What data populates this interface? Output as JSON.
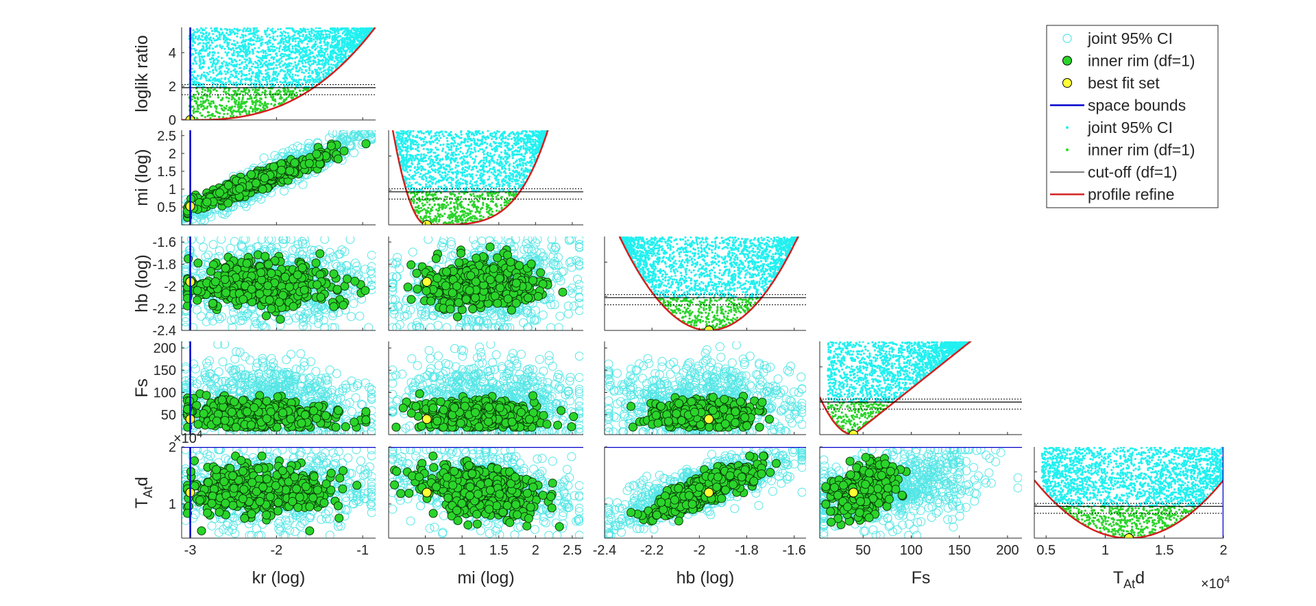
{
  "figure": {
    "legend_position": "top-right",
    "legend": [
      {
        "label": "joint 95% CI",
        "marker": "open-circle",
        "color": "#55e6e6"
      },
      {
        "label": "inner rim (df=1)",
        "marker": "filled-circle",
        "color": "#2ad42a"
      },
      {
        "label": "best fit set",
        "marker": "filled-circle",
        "color": "#ffff33"
      },
      {
        "label": "space bounds",
        "marker": "line",
        "color": "#0000cc"
      },
      {
        "label": "joint 95% CI",
        "marker": "dot",
        "color": "#22f0f0"
      },
      {
        "label": "inner rim (df=1)",
        "marker": "dot",
        "color": "#22dd22"
      },
      {
        "label": "cut-off (df=1)",
        "marker": "line",
        "color": "#000000"
      },
      {
        "label": "profile refine",
        "marker": "line",
        "color": "#d42020"
      }
    ],
    "colors": {
      "joint_ci": "#55e6e6",
      "inner_rim": "#2ad42a",
      "best_fit": "#ffff33",
      "space_bounds": "#0000cc",
      "cutoff": "#000000",
      "profile": "#d42020"
    }
  },
  "chart_data": {
    "type": "scatter",
    "grid": false,
    "layout": "lower-triangular scatter matrix with profile likelihood panels on the diagonal",
    "parameters": [
      {
        "name": "kr",
        "xlabel": "kr (log)",
        "ylabel": "",
        "range": [
          -3.1,
          -0.85
        ],
        "ticks": [
          -3,
          -2,
          -1
        ],
        "tick_labels": [
          "-3",
          "-2",
          "-1"
        ],
        "best": -3.0,
        "lower_bound": -3.0
      },
      {
        "name": "mi",
        "xlabel": "mi (log)",
        "ylabel": "mi (log)",
        "range": [
          0.0,
          2.65
        ],
        "ticks": [
          0.5,
          1,
          1.5,
          2,
          2.5
        ],
        "tick_labels": [
          "0.5",
          "1",
          "1.5",
          "2",
          "2.5"
        ],
        "best": 0.52
      },
      {
        "name": "hb",
        "xlabel": "hb (log)",
        "ylabel": "hb (log)",
        "range": [
          -2.4,
          -1.55
        ],
        "ticks": [
          -2.4,
          -2.2,
          -2,
          -1.8,
          -1.6
        ],
        "tick_labels": [
          "-2.4",
          "-2.2",
          "-2",
          "-1.8",
          "-1.6"
        ],
        "best": -1.96
      },
      {
        "name": "Fs",
        "xlabel": "Fs",
        "ylabel": "Fs",
        "range": [
          5,
          215
        ],
        "ticks": [
          50,
          100,
          150,
          200
        ],
        "tick_labels": [
          "50",
          "100",
          "150",
          "200"
        ],
        "best": 40
      },
      {
        "name": "TAtd",
        "xlabel_main": "T",
        "xlabel_sub": "At",
        "xlabel_tail": "d",
        "range": [
          4000,
          20000
        ],
        "ticks": [
          5000,
          10000,
          15000,
          20000
        ],
        "tick_labels": [
          "0.5",
          "1",
          "1.5",
          "2"
        ],
        "y_tick_labels": [
          "1",
          "2"
        ],
        "exponent_label": "×10",
        "exponent": "4",
        "best": 12000,
        "upper_bound": 20000
      }
    ],
    "diagonal": {
      "ylabel": "loglik ratio",
      "range": [
        0,
        5.5
      ],
      "ticks": [
        0,
        2,
        4
      ],
      "tick_labels": [
        "0",
        "2",
        "4"
      ],
      "cutoff": 1.92,
      "cutoff_band": [
        1.5,
        2.1
      ]
    },
    "pairwise_correlation": {
      "mi|kr": 0.95,
      "hb|kr": 0.0,
      "hb|mi": 0.15,
      "Fs|kr": -0.2,
      "Fs|mi": -0.05,
      "Fs|hb": 0.0,
      "TAtd|kr": 0.05,
      "TAtd|mi": -0.35,
      "TAtd|hb": 0.8,
      "TAtd|Fs": 0.35
    }
  }
}
